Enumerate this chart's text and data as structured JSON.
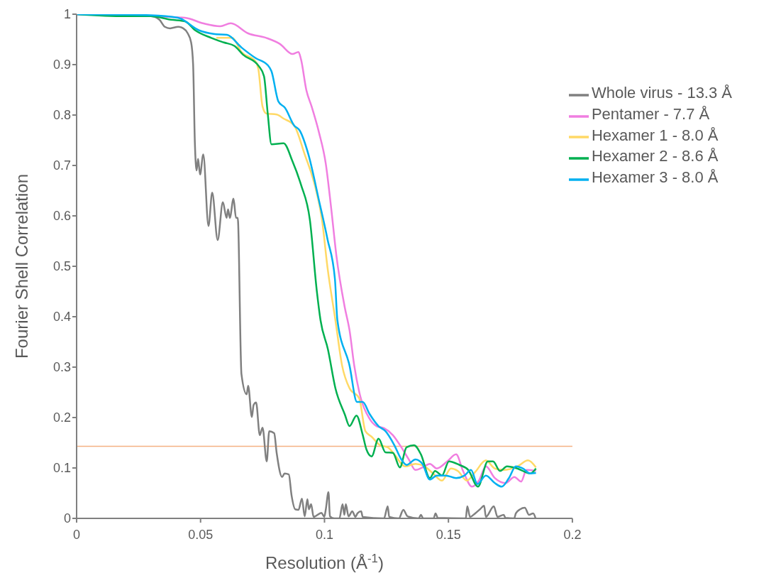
{
  "chart_data": {
    "type": "line",
    "xlabel": "Resolution (Å$^{-1}$)",
    "ylabel": "Fourier Shell Correlation",
    "xlim": [
      0,
      0.2
    ],
    "xticks": [
      0,
      0.05,
      0.1,
      0.15,
      0.2
    ],
    "ylim": [
      0,
      1
    ],
    "yticks": [
      0,
      0.1,
      0.2,
      0.3,
      0.4,
      0.5,
      0.6,
      0.7,
      0.8,
      0.9,
      1
    ],
    "grid": false,
    "legend": "top right",
    "marker": "none",
    "line_style": "solid",
    "ref_lines": [
      {
        "axis": "y",
        "value": 0.143,
        "color": "#f4b183"
      }
    ],
    "series": [
      {
        "name": "Whole virus - 13.3 Å",
        "color": "#808080",
        "x": [
          0,
          0.03,
          0.0334,
          0.0356,
          0.0377,
          0.041,
          0.043,
          0.0447,
          0.0462,
          0.047,
          0.0477,
          0.0484,
          0.049,
          0.0498,
          0.0511,
          0.0532,
          0.0547,
          0.0569,
          0.059,
          0.0605,
          0.0611,
          0.0618,
          0.0633,
          0.0643,
          0.065,
          0.0665,
          0.0686,
          0.0692,
          0.0707,
          0.0714,
          0.0724,
          0.0739,
          0.075,
          0.0767,
          0.0777,
          0.0797,
          0.0807,
          0.0829,
          0.0839,
          0.0856,
          0.0867,
          0.0882,
          0.0895,
          0.0909,
          0.092,
          0.0931,
          0.0937,
          0.0946,
          0.0956,
          0.0988,
          0.0999,
          0.1005,
          0.1016,
          0.1022,
          0.104,
          0.106,
          0.1073,
          0.108,
          0.1086,
          0.1097,
          0.1112,
          0.1125,
          0.1133,
          0.1148,
          0.1154,
          0.124,
          0.1255,
          0.1261,
          0.13,
          0.1318,
          0.1335,
          0.138,
          0.1389,
          0.1398,
          0.144,
          0.1448,
          0.1457,
          0.157,
          0.1576,
          0.1587,
          0.1608,
          0.1627,
          0.1644,
          0.1651,
          0.1683,
          0.1698,
          0.1723,
          0.173,
          0.1765,
          0.1772,
          0.1789,
          0.1808,
          0.1825,
          0.1842,
          0.1851
        ],
        "values": [
          1,
          0.996,
          0.989,
          0.975,
          0.972,
          0.975,
          0.972,
          0.963,
          0.944,
          0.9,
          0.746,
          0.69,
          0.713,
          0.682,
          0.722,
          0.58,
          0.646,
          0.552,
          0.627,
          0.596,
          0.613,
          0.596,
          0.634,
          0.596,
          0.596,
          0.286,
          0.246,
          0.263,
          0.201,
          0.225,
          0.23,
          0.165,
          0.18,
          0.113,
          0.173,
          0.169,
          0.13,
          0.082,
          0.089,
          0.087,
          0.046,
          0.018,
          0.017,
          0.039,
          0.004,
          0.038,
          0.018,
          0.028,
          0.003,
          0.011,
          0.003,
          0.017,
          0.052,
          0.004,
          0,
          0,
          0.028,
          0.007,
          0.028,
          0.004,
          0.014,
          0.003,
          0.01,
          0.014,
          0.003,
          0,
          0.024,
          0.003,
          0,
          0.017,
          0.004,
          0,
          0.007,
          0,
          0,
          0.01,
          0.001,
          0,
          0.024,
          0.003,
          0.01,
          0.018,
          0.025,
          0.003,
          0.024,
          0.003,
          0.007,
          0.001,
          0,
          0.01,
          0.018,
          0.021,
          0.007,
          0.01,
          0.001
        ]
      },
      {
        "name": "Pentamer - 7.7 Å",
        "color": "#f07ee0",
        "x": [
          0,
          0.0437,
          0.0509,
          0.0579,
          0.0622,
          0.0692,
          0.0765,
          0.082,
          0.0871,
          0.0895,
          0.0905,
          0.0927,
          0.0948,
          0.0978,
          0.1005,
          0.1027,
          0.1048,
          0.1082,
          0.1101,
          0.112,
          0.114,
          0.118,
          0.121,
          0.124,
          0.1276,
          0.131,
          0.134,
          0.1367,
          0.1395,
          0.1425,
          0.1453,
          0.1495,
          0.1531,
          0.1559,
          0.1595,
          0.1623,
          0.1651,
          0.1687,
          0.173,
          0.1766,
          0.1793,
          0.1815,
          0.1853
        ],
        "values": [
          1,
          0.993,
          0.982,
          0.976,
          0.982,
          0.962,
          0.953,
          0.941,
          0.921,
          0.925,
          0.911,
          0.849,
          0.817,
          0.765,
          0.704,
          0.615,
          0.521,
          0.418,
          0.373,
          0.303,
          0.251,
          0.199,
          0.183,
          0.179,
          0.165,
          0.141,
          0.117,
          0.096,
          0.101,
          0.108,
          0.099,
          0.113,
          0.127,
          0.094,
          0.063,
          0.075,
          0.103,
          0.08,
          0.07,
          0.082,
          0.073,
          0.096,
          0.094
        ]
      },
      {
        "name": "Hexamer 1 - 8.0 Å",
        "color": "#ffd966",
        "x": [
          0.0564,
          0.0628,
          0.0665,
          0.0722,
          0.0733,
          0.075,
          0.0765,
          0.0807,
          0.0835,
          0.0878,
          0.092,
          0.0963,
          0.099,
          0.1012,
          0.1044,
          0.1071,
          0.1101,
          0.114,
          0.1165,
          0.119,
          0.1225,
          0.1255,
          0.1282,
          0.1325,
          0.1367,
          0.1404,
          0.1438,
          0.1474,
          0.151,
          0.1538,
          0.1574,
          0.1608,
          0.1651,
          0.1687,
          0.1723,
          0.1778,
          0.1821,
          0.1853
        ],
        "values": [
          0.953,
          0.953,
          0.925,
          0.906,
          0.892,
          0.817,
          0.803,
          0.801,
          0.793,
          0.779,
          0.722,
          0.657,
          0.592,
          0.498,
          0.393,
          0.303,
          0.258,
          0.238,
          0.173,
          0.162,
          0.145,
          0.141,
          0.127,
          0.103,
          0.108,
          0.103,
          0.089,
          0.075,
          0.099,
          0.094,
          0.075,
          0.092,
          0.115,
          0.099,
          0.096,
          0.103,
          0.115,
          0.101
        ]
      },
      {
        "name": "Hexamer 2 - 8.6 Å",
        "color": "#00b050",
        "x": [
          0,
          0.0196,
          0.03,
          0.0381,
          0.0437,
          0.0479,
          0.0543,
          0.0594,
          0.0637,
          0.0671,
          0.0735,
          0.0756,
          0.0771,
          0.0786,
          0.0835,
          0.0871,
          0.0905,
          0.0941,
          0.0969,
          0.0984,
          0.1014,
          0.1044,
          0.1082,
          0.1101,
          0.1129,
          0.1154,
          0.1169,
          0.119,
          0.1218,
          0.1246,
          0.1276,
          0.1304,
          0.1331,
          0.1361,
          0.1389,
          0.1425,
          0.1446,
          0.1474,
          0.1502,
          0.1544,
          0.158,
          0.1619,
          0.1659,
          0.168,
          0.1708,
          0.1736,
          0.1778,
          0.183,
          0.1853
        ],
        "values": [
          1,
          0.996,
          0.996,
          0.989,
          0.986,
          0.968,
          0.953,
          0.944,
          0.937,
          0.92,
          0.897,
          0.877,
          0.803,
          0.742,
          0.744,
          0.708,
          0.662,
          0.592,
          0.451,
          0.393,
          0.335,
          0.258,
          0.206,
          0.183,
          0.204,
          0.166,
          0.137,
          0.123,
          0.158,
          0.131,
          0.13,
          0.101,
          0.141,
          0.145,
          0.127,
          0.08,
          0.094,
          0.085,
          0.113,
          0.106,
          0.096,
          0.063,
          0.113,
          0.113,
          0.094,
          0.103,
          0.099,
          0.089,
          0.099
        ]
      },
      {
        "name": "Hexamer 3 - 8.0 Å",
        "color": "#00b0f0",
        "x": [
          0,
          0.03,
          0.0409,
          0.0494,
          0.0552,
          0.0607,
          0.0665,
          0.0722,
          0.0771,
          0.0786,
          0.0814,
          0.0841,
          0.0878,
          0.0899,
          0.0935,
          0.0978,
          0.1012,
          0.1042,
          0.1052,
          0.1101,
          0.1131,
          0.1154,
          0.1182,
          0.1218,
          0.1246,
          0.1282,
          0.131,
          0.1331,
          0.1367,
          0.1395,
          0.1425,
          0.1453,
          0.1489,
          0.1531,
          0.1565,
          0.1591,
          0.1617,
          0.1651,
          0.1687,
          0.1715,
          0.1744,
          0.1772,
          0.18,
          0.183,
          0.1853
        ],
        "values": [
          1,
          0.998,
          0.993,
          0.968,
          0.961,
          0.959,
          0.934,
          0.913,
          0.899,
          0.887,
          0.827,
          0.814,
          0.779,
          0.77,
          0.722,
          0.63,
          0.554,
          0.475,
          0.393,
          0.303,
          0.231,
          0.231,
          0.207,
          0.183,
          0.173,
          0.145,
          0.117,
          0.106,
          0.117,
          0.108,
          0.077,
          0.085,
          0.085,
          0.08,
          0.085,
          0.096,
          0.068,
          0.085,
          0.07,
          0.063,
          0.08,
          0.103,
          0.099,
          0.089,
          0.09
        ]
      }
    ]
  }
}
